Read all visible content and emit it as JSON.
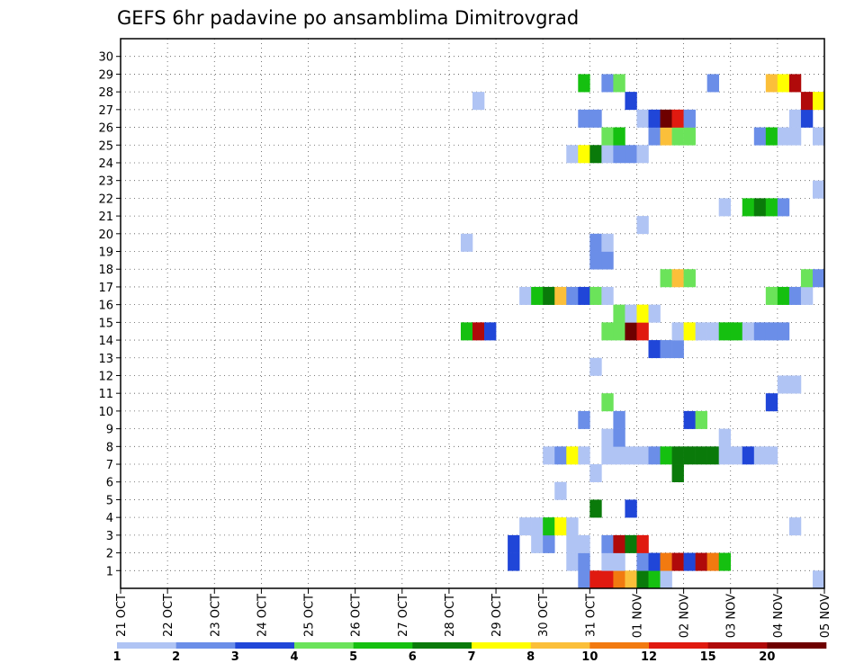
{
  "chart_data": {
    "type": "heatmap",
    "title": "GEFS 6hr padavine po ansamblima Dimitrovgrad",
    "xlabel": "",
    "ylabel": "",
    "x_ticks": [
      "21 OCT",
      "22 OCT",
      "23 OCT",
      "24 OCT",
      "25 OCT",
      "26 OCT",
      "27 OCT",
      "28 OCT",
      "29 OCT",
      "30 OCT",
      "31 OCT",
      "01 NOV",
      "02 NOV",
      "03 NOV",
      "04 NOV",
      "05 NOV"
    ],
    "y_ticks": [
      "1",
      "2",
      "3",
      "4",
      "5",
      "6",
      "7",
      "8",
      "9",
      "10",
      "11",
      "12",
      "13",
      "14",
      "15",
      "16",
      "17",
      "18",
      "19",
      "20",
      "21",
      "22",
      "23",
      "24",
      "25",
      "26",
      "27",
      "28",
      "29",
      "30"
    ],
    "time_steps": 60,
    "steps_per_day": 4,
    "members": 30,
    "grid": true,
    "legend": {
      "placement": "bottom",
      "labels": [
        "1",
        "2",
        "3",
        "4",
        "5",
        "6",
        "7",
        "8",
        "10",
        "12",
        "15",
        "20"
      ],
      "colors": [
        "#b0c4f4",
        "#6b8ee8",
        "#2046d8",
        "#6be35a",
        "#15c010",
        "#0a7a0a",
        "#ffff00",
        "#fbbf3a",
        "#f27a10",
        "#e01a10",
        "#b00a0a",
        "#6e0000"
      ]
    },
    "cells": [
      [
        0,
        39,
        1
      ],
      [
        0,
        40,
        9
      ],
      [
        0,
        41,
        9
      ],
      [
        0,
        42,
        8
      ],
      [
        0,
        43,
        7
      ],
      [
        0,
        44,
        5
      ],
      [
        0,
        45,
        4
      ],
      [
        0,
        46,
        0
      ],
      [
        0,
        59,
        0
      ],
      [
        1,
        33,
        2
      ],
      [
        1,
        38,
        0
      ],
      [
        1,
        39,
        1
      ],
      [
        1,
        41,
        0
      ],
      [
        1,
        42,
        0
      ],
      [
        1,
        44,
        1
      ],
      [
        1,
        45,
        2
      ],
      [
        1,
        46,
        8
      ],
      [
        1,
        47,
        10
      ],
      [
        1,
        48,
        2
      ],
      [
        1,
        49,
        10
      ],
      [
        1,
        50,
        8
      ],
      [
        1,
        51,
        4
      ],
      [
        2,
        33,
        2
      ],
      [
        2,
        35,
        0
      ],
      [
        2,
        36,
        1
      ],
      [
        2,
        38,
        0
      ],
      [
        2,
        39,
        0
      ],
      [
        2,
        41,
        1
      ],
      [
        2,
        42,
        10
      ],
      [
        2,
        43,
        5
      ],
      [
        2,
        44,
        9
      ],
      [
        3,
        34,
        0
      ],
      [
        3,
        35,
        0
      ],
      [
        3,
        36,
        4
      ],
      [
        3,
        37,
        6
      ],
      [
        3,
        38,
        0
      ],
      [
        3,
        57,
        0
      ],
      [
        4,
        40,
        5
      ],
      [
        4,
        43,
        2
      ],
      [
        5,
        37,
        0
      ],
      [
        6,
        40,
        0
      ],
      [
        6,
        47,
        5
      ],
      [
        7,
        36,
        0
      ],
      [
        7,
        37,
        1
      ],
      [
        7,
        38,
        6
      ],
      [
        7,
        39,
        0
      ],
      [
        7,
        41,
        0
      ],
      [
        7,
        42,
        0
      ],
      [
        7,
        43,
        0
      ],
      [
        7,
        44,
        0
      ],
      [
        7,
        45,
        1
      ],
      [
        7,
        46,
        4
      ],
      [
        7,
        47,
        5
      ],
      [
        7,
        48,
        5
      ],
      [
        7,
        49,
        5
      ],
      [
        7,
        50,
        5
      ],
      [
        7,
        51,
        0
      ],
      [
        7,
        52,
        0
      ],
      [
        7,
        53,
        2
      ],
      [
        7,
        54,
        0
      ],
      [
        7,
        55,
        0
      ],
      [
        8,
        41,
        0
      ],
      [
        8,
        42,
        1
      ],
      [
        8,
        51,
        0
      ],
      [
        9,
        39,
        1
      ],
      [
        9,
        42,
        1
      ],
      [
        9,
        48,
        2
      ],
      [
        9,
        49,
        3
      ],
      [
        10,
        41,
        3
      ],
      [
        10,
        55,
        2
      ],
      [
        11,
        56,
        0
      ],
      [
        11,
        57,
        0
      ],
      [
        12,
        40,
        0
      ],
      [
        13,
        45,
        2
      ],
      [
        13,
        46,
        1
      ],
      [
        13,
        47,
        1
      ],
      [
        14,
        29,
        4
      ],
      [
        14,
        30,
        10
      ],
      [
        14,
        31,
        2
      ],
      [
        14,
        41,
        3
      ],
      [
        14,
        42,
        3
      ],
      [
        14,
        43,
        11
      ],
      [
        14,
        44,
        9
      ],
      [
        14,
        47,
        0
      ],
      [
        14,
        48,
        6
      ],
      [
        14,
        49,
        0
      ],
      [
        14,
        50,
        0
      ],
      [
        14,
        51,
        4
      ],
      [
        14,
        52,
        4
      ],
      [
        14,
        53,
        0
      ],
      [
        14,
        54,
        1
      ],
      [
        14,
        55,
        1
      ],
      [
        14,
        56,
        1
      ],
      [
        15,
        42,
        3
      ],
      [
        15,
        43,
        0
      ],
      [
        15,
        44,
        6
      ],
      [
        15,
        45,
        0
      ],
      [
        16,
        34,
        0
      ],
      [
        16,
        35,
        4
      ],
      [
        16,
        36,
        5
      ],
      [
        16,
        37,
        7
      ],
      [
        16,
        38,
        1
      ],
      [
        16,
        39,
        2
      ],
      [
        16,
        40,
        3
      ],
      [
        16,
        41,
        0
      ],
      [
        16,
        55,
        3
      ],
      [
        16,
        56,
        4
      ],
      [
        16,
        57,
        1
      ],
      [
        16,
        58,
        0
      ],
      [
        17,
        46,
        3
      ],
      [
        17,
        47,
        7
      ],
      [
        17,
        48,
        3
      ],
      [
        17,
        58,
        3
      ],
      [
        17,
        59,
        1
      ],
      [
        18,
        40,
        1
      ],
      [
        18,
        41,
        1
      ],
      [
        19,
        29,
        0
      ],
      [
        19,
        40,
        1
      ],
      [
        19,
        41,
        0
      ],
      [
        20,
        44,
        0
      ],
      [
        21,
        51,
        0
      ],
      [
        21,
        53,
        4
      ],
      [
        21,
        54,
        5
      ],
      [
        21,
        55,
        4
      ],
      [
        21,
        56,
        1
      ],
      [
        22,
        59,
        0
      ],
      [
        24,
        38,
        0
      ],
      [
        24,
        39,
        6
      ],
      [
        24,
        40,
        5
      ],
      [
        24,
        41,
        0
      ],
      [
        24,
        42,
        1
      ],
      [
        24,
        43,
        1
      ],
      [
        24,
        44,
        0
      ],
      [
        25,
        41,
        3
      ],
      [
        25,
        42,
        4
      ],
      [
        25,
        45,
        1
      ],
      [
        25,
        46,
        7
      ],
      [
        25,
        47,
        3
      ],
      [
        25,
        48,
        3
      ],
      [
        25,
        54,
        1
      ],
      [
        25,
        55,
        4
      ],
      [
        25,
        56,
        0
      ],
      [
        25,
        57,
        0
      ],
      [
        25,
        59,
        0
      ],
      [
        26,
        39,
        1
      ],
      [
        26,
        40,
        1
      ],
      [
        26,
        44,
        0
      ],
      [
        26,
        45,
        2
      ],
      [
        26,
        46,
        11
      ],
      [
        26,
        47,
        9
      ],
      [
        26,
        48,
        1
      ],
      [
        26,
        57,
        0
      ],
      [
        26,
        58,
        2
      ],
      [
        27,
        30,
        0
      ],
      [
        27,
        43,
        2
      ],
      [
        27,
        58,
        10
      ],
      [
        27,
        59,
        6
      ],
      [
        28,
        39,
        4
      ],
      [
        28,
        41,
        1
      ],
      [
        28,
        42,
        3
      ],
      [
        28,
        50,
        1
      ],
      [
        28,
        55,
        7
      ],
      [
        28,
        56,
        6
      ],
      [
        28,
        57,
        10
      ]
    ]
  }
}
